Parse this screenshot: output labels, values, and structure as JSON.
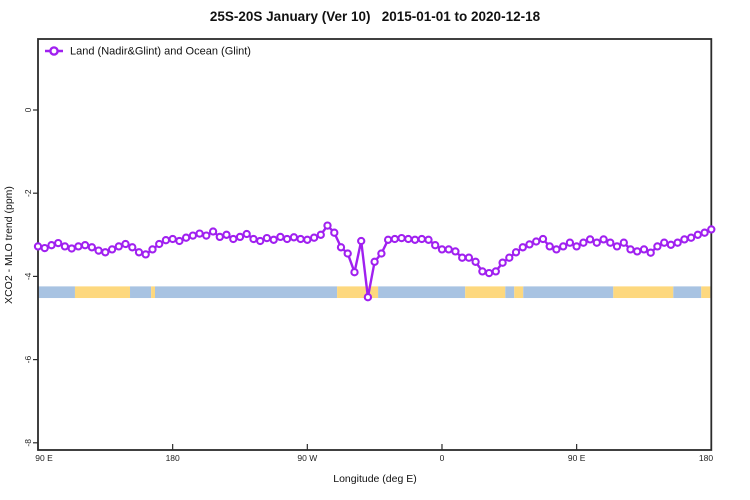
{
  "title": "25S-20S January (Ver 10)   2015-01-01 to 2020-12-18",
  "legend": {
    "label": "Land (Nadir&Glint) and Ocean (Glint)"
  },
  "colors": {
    "line": "#A020F0",
    "marker_fill": "#FFFFFF",
    "ocean_band": "#A8C3E2",
    "land_band": "#FDD87E",
    "axis": "#2B2B2B",
    "background": "#FFFFFF"
  },
  "chart_data": {
    "type": "line",
    "title": "25S-20S January (Ver 10)   2015-01-01 to 2020-12-18",
    "xlabel": "Longitude (deg E)",
    "ylabel": "XCO2 - MLO trend (ppm)",
    "legend_entries": [
      "Land (Nadir&Glint) and Ocean (Glint)"
    ],
    "legend_position": "top-left-inside",
    "grid": false,
    "xlim_longitude_sequence": [
      90,
      540
    ],
    "xlim_note": "x axis wraps: 90E to 180, 90W, 0, 90E, 180",
    "ylim": [
      1.7,
      -8.2
    ],
    "x_ticks": [
      {
        "pos": 90,
        "label": "90 E"
      },
      {
        "pos": 180,
        "label": "180"
      },
      {
        "pos": 270,
        "label": "90 W"
      },
      {
        "pos": 360,
        "label": "0"
      },
      {
        "pos": 450,
        "label": "90 E"
      },
      {
        "pos": 540,
        "label": "180"
      }
    ],
    "y_ticks": [
      {
        "pos": 0,
        "label": "0"
      },
      {
        "pos": -2,
        "label": "-2"
      },
      {
        "pos": -4,
        "label": "-4"
      },
      {
        "pos": -6,
        "label": "-6"
      },
      {
        "pos": -8,
        "label": "-8"
      }
    ],
    "surface_band": {
      "y_range": [
        -4.24,
        -4.52
      ],
      "segments": [
        {
          "type": "ocean",
          "from": 90.0,
          "to": 114.7
        },
        {
          "type": "land",
          "from": 114.7,
          "to": 151.5
        },
        {
          "type": "ocean",
          "from": 151.5,
          "to": 165.6
        },
        {
          "type": "land",
          "from": 165.6,
          "to": 168.2
        },
        {
          "type": "ocean",
          "from": 168.2,
          "to": 289.9
        },
        {
          "type": "land",
          "from": 289.9,
          "to": 317.3
        },
        {
          "type": "ocean",
          "from": 317.3,
          "to": 375.5
        },
        {
          "type": "land",
          "from": 375.5,
          "to": 402.3
        },
        {
          "type": "ocean",
          "from": 402.3,
          "to": 408.3
        },
        {
          "type": "land",
          "from": 408.3,
          "to": 414.3
        },
        {
          "type": "ocean",
          "from": 414.3,
          "to": 474.5
        },
        {
          "type": "land",
          "from": 474.5,
          "to": 514.6
        },
        {
          "type": "ocean",
          "from": 514.6,
          "to": 533.3
        },
        {
          "type": "land",
          "from": 533.3,
          "to": 539.4
        },
        {
          "type": "ocean",
          "from": 539.4,
          "to": 540.0
        }
      ]
    },
    "series": [
      {
        "name": "Land (Nadir&Glint) and Ocean (Glint)",
        "x_longitude_sequence": [
          90,
          94.5,
          99,
          103.5,
          108,
          112.5,
          117,
          121.5,
          126,
          130.5,
          135,
          139.5,
          144,
          148.5,
          153,
          157.5,
          162,
          166.5,
          171,
          175.5,
          180,
          184.5,
          189,
          193.5,
          198,
          202.5,
          207,
          211.5,
          216,
          220.5,
          225,
          229.5,
          234,
          238.5,
          243,
          247.5,
          252,
          256.5,
          261,
          265.5,
          270,
          274.5,
          279,
          283.5,
          288,
          292.5,
          297,
          301.5,
          306,
          310.5,
          315,
          319.5,
          324,
          328.5,
          333,
          337.5,
          342,
          346.5,
          351,
          355.5,
          360,
          364.5,
          369,
          373.5,
          378,
          382.5,
          387,
          391.5,
          396,
          400.5,
          405,
          409.5,
          414,
          418.5,
          423,
          427.5,
          432,
          436.5,
          441,
          445.5,
          450,
          454.5,
          459,
          463.5,
          468,
          472.5,
          477,
          481.5,
          486,
          490.5,
          495,
          499.5,
          504,
          508.5,
          513,
          517.5,
          522,
          526.5,
          531,
          535.5,
          540
        ],
        "values": [
          -3.28,
          -3.32,
          -3.25,
          -3.2,
          -3.28,
          -3.33,
          -3.28,
          -3.25,
          -3.3,
          -3.38,
          -3.42,
          -3.35,
          -3.28,
          -3.22,
          -3.3,
          -3.42,
          -3.47,
          -3.35,
          -3.22,
          -3.13,
          -3.1,
          -3.15,
          -3.07,
          -3.02,
          -2.97,
          -3.02,
          -2.92,
          -3.05,
          -3.0,
          -3.1,
          -3.05,
          -2.98,
          -3.1,
          -3.15,
          -3.08,
          -3.12,
          -3.05,
          -3.1,
          -3.06,
          -3.1,
          -3.12,
          -3.07,
          -3.0,
          -2.78,
          -2.95,
          -3.3,
          -3.45,
          -3.9,
          -3.15,
          -4.5,
          -3.65,
          -3.45,
          -3.12,
          -3.1,
          -3.08,
          -3.1,
          -3.12,
          -3.1,
          -3.12,
          -3.25,
          -3.35,
          -3.35,
          -3.4,
          -3.55,
          -3.55,
          -3.65,
          -3.88,
          -3.92,
          -3.88,
          -3.67,
          -3.55,
          -3.42,
          -3.3,
          -3.23,
          -3.16,
          -3.1,
          -3.28,
          -3.35,
          -3.28,
          -3.19,
          -3.28,
          -3.19,
          -3.11,
          -3.19,
          -3.11,
          -3.19,
          -3.28,
          -3.19,
          -3.35,
          -3.4,
          -3.35,
          -3.43,
          -3.28,
          -3.19,
          -3.24,
          -3.19,
          -3.11,
          -3.07,
          -3.0,
          -2.95,
          -2.87
        ]
      }
    ]
  }
}
